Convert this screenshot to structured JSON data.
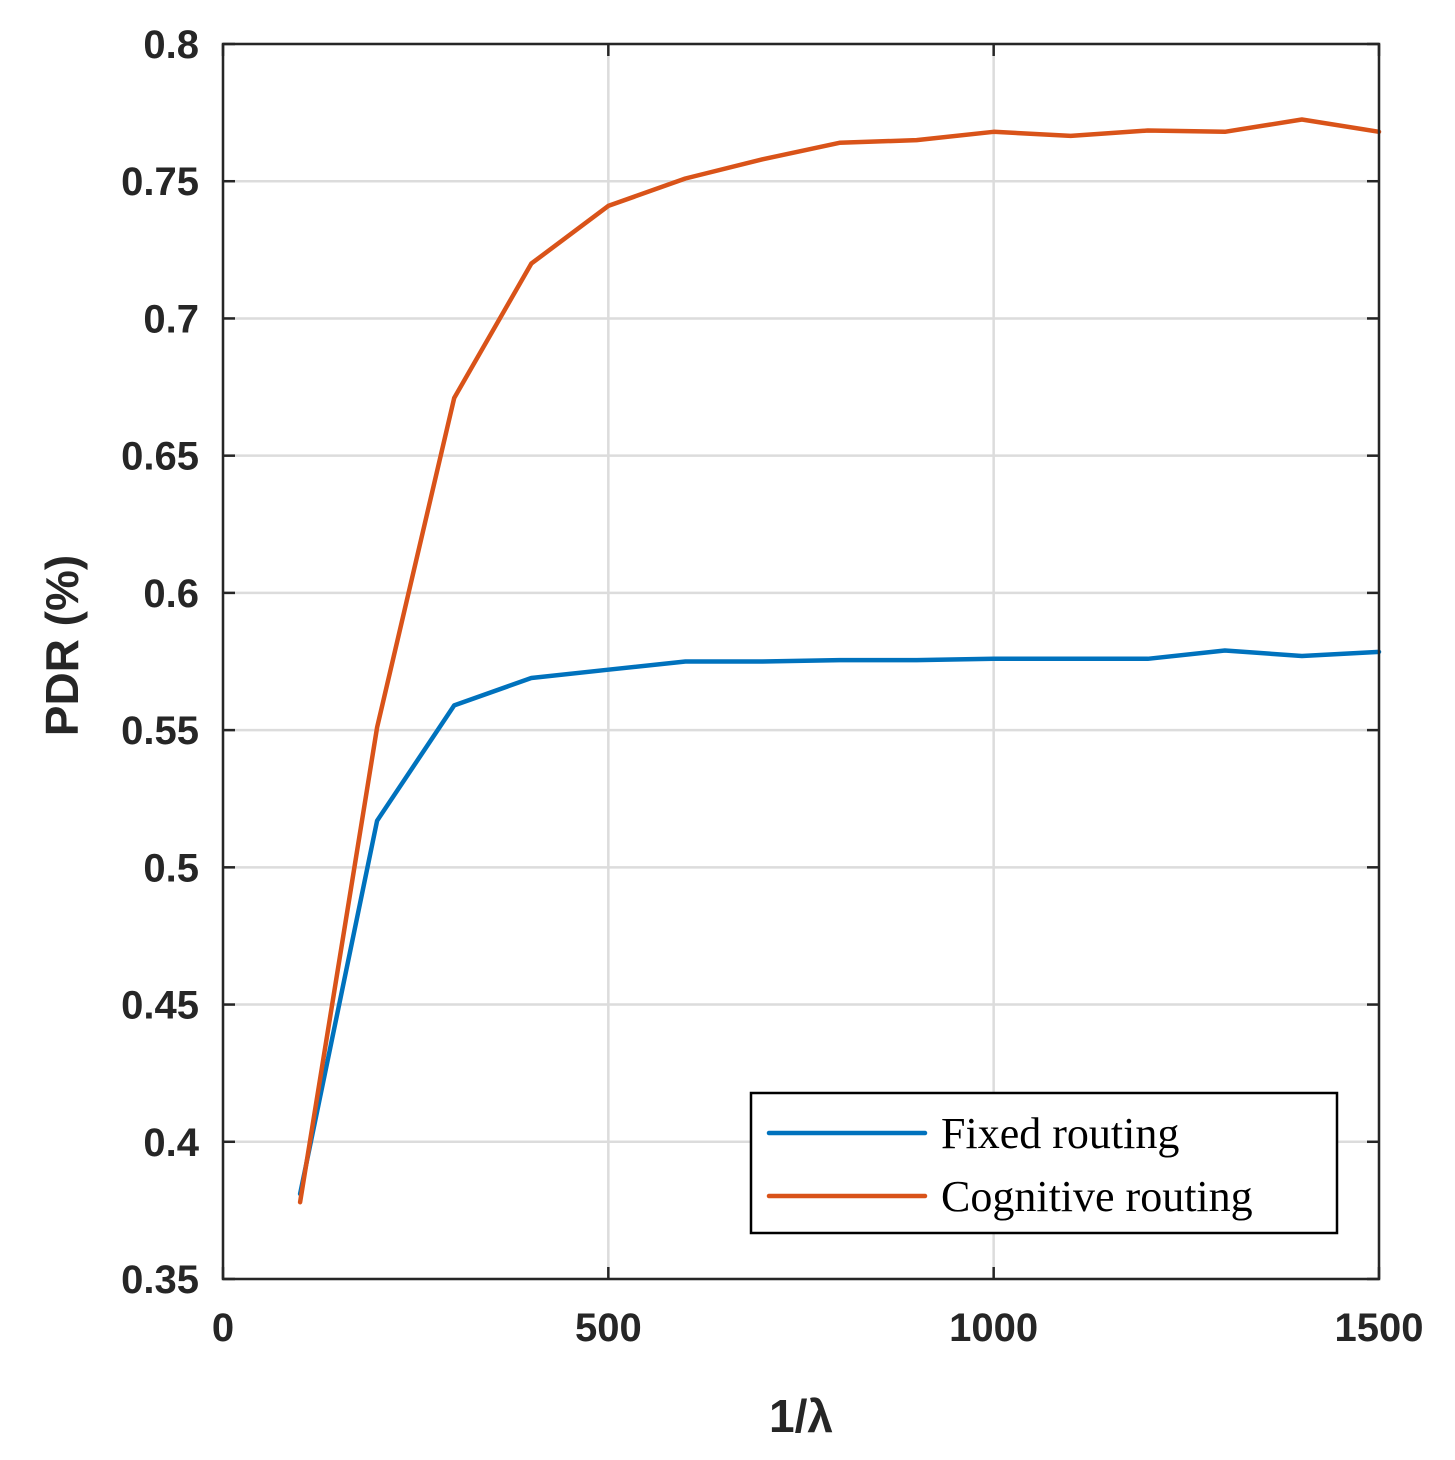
{
  "chart_data": {
    "type": "line",
    "xlabel": "1/λ",
    "ylabel": "PDR (%)",
    "xlim": [
      0,
      1500
    ],
    "ylim": [
      0.35,
      0.8
    ],
    "xticks": [
      0,
      500,
      1000,
      1500
    ],
    "yticks": [
      0.35,
      0.4,
      0.45,
      0.5,
      0.55,
      0.6,
      0.65,
      0.7,
      0.75,
      0.8
    ],
    "xtick_labels": [
      "0",
      "500",
      "1000",
      "1500"
    ],
    "ytick_labels": [
      "0.35",
      "0.4",
      "0.45",
      "0.5",
      "0.55",
      "0.6",
      "0.65",
      "0.7",
      "0.75",
      "0.8"
    ],
    "grid": true,
    "legend_position": "bottom-right",
    "x": [
      100,
      200,
      300,
      400,
      500,
      600,
      700,
      800,
      900,
      1000,
      1100,
      1200,
      1300,
      1400,
      1500
    ],
    "series": [
      {
        "name": "Fixed routing",
        "color": "#0072BD",
        "values": [
          0.381,
          0.517,
          0.559,
          0.569,
          0.572,
          0.575,
          0.575,
          0.5755,
          0.5755,
          0.576,
          0.576,
          0.576,
          0.579,
          0.577,
          0.5785
        ]
      },
      {
        "name": "Cognitive routing",
        "color": "#D95319",
        "values": [
          0.378,
          0.551,
          0.671,
          0.72,
          0.741,
          0.751,
          0.758,
          0.764,
          0.765,
          0.768,
          0.7665,
          0.7685,
          0.768,
          0.7725,
          0.768
        ]
      }
    ]
  }
}
